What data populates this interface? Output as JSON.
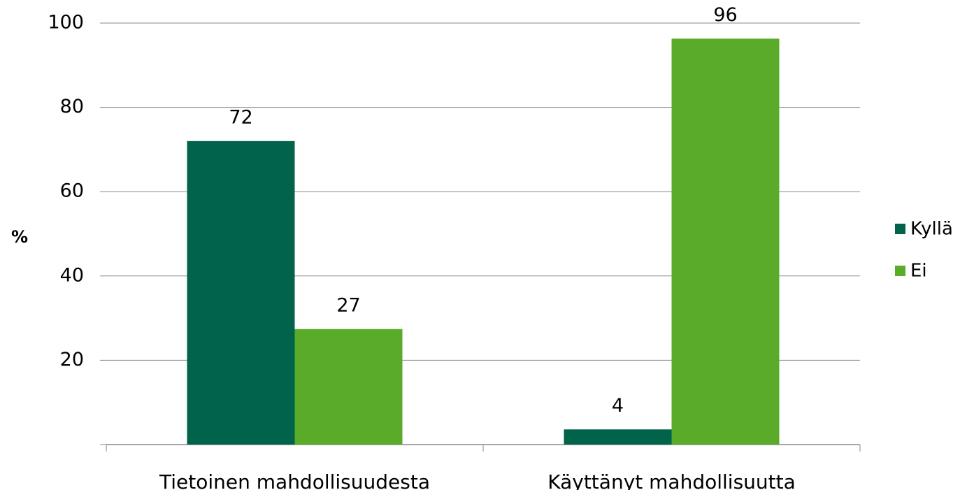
{
  "chart_data": {
    "type": "bar",
    "y_label": "%",
    "categories": [
      "Tietoinen mahdollisuudesta",
      "Käyttänyt mahdollisuutta"
    ],
    "series": [
      {
        "name": "Kyllä",
        "color": "#00634a",
        "values": [
          72,
          3.6
        ],
        "value_labels": [
          "72",
          "4"
        ]
      },
      {
        "name": "Ei",
        "color": "#5aab2a",
        "values": [
          27.4,
          96.3
        ],
        "value_labels": [
          "27",
          "96"
        ]
      }
    ],
    "ylim": [
      0,
      100
    ],
    "yticks": [
      20,
      40,
      60,
      80,
      100
    ],
    "grid": true,
    "legend": "right"
  }
}
